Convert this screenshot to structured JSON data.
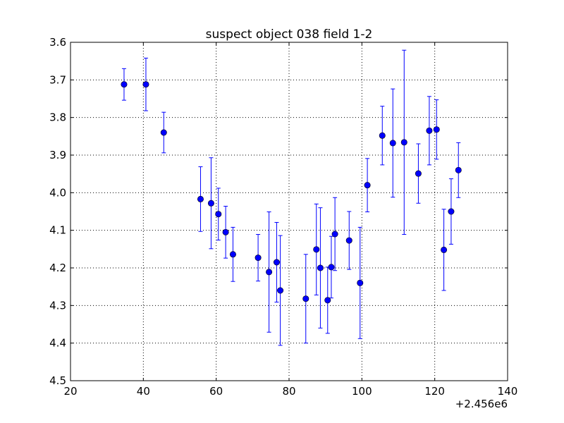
{
  "chart_data": {
    "type": "scatter",
    "title": "suspect object 038 field 1-2",
    "xlabel": "",
    "ylabel": "",
    "x_offset_label": "+2.456e6",
    "xlim": [
      20,
      140
    ],
    "ylim": [
      3.6,
      4.5
    ],
    "y_inverted": true,
    "grid": true,
    "x_ticks": [
      "20",
      "40",
      "60",
      "80",
      "100",
      "120",
      "140"
    ],
    "y_ticks": [
      "3.6",
      "3.7",
      "3.8",
      "3.9",
      "4.0",
      "4.1",
      "4.2",
      "4.3",
      "4.4",
      "4.5"
    ],
    "colors": {
      "series": "#0000ff",
      "grid": "#000000"
    },
    "series": [
      {
        "points": [
          {
            "x": 2456034.7,
            "y": 3.712,
            "err_low": 0.042,
            "err_high": 0.042
          },
          {
            "x": 2456040.7,
            "y": 3.712,
            "err_low": 0.07,
            "err_high": 0.07
          },
          {
            "x": 2456045.6,
            "y": 3.84,
            "err_low": 0.054,
            "err_high": 0.054
          },
          {
            "x": 2456055.7,
            "y": 4.017,
            "err_low": 0.086,
            "err_high": 0.086
          },
          {
            "x": 2456058.6,
            "y": 4.028,
            "err_low": 0.121,
            "err_high": 0.121
          },
          {
            "x": 2456060.6,
            "y": 4.057,
            "err_low": 0.069,
            "err_high": 0.069
          },
          {
            "x": 2456062.6,
            "y": 4.105,
            "err_low": 0.069,
            "err_high": 0.069
          },
          {
            "x": 2456064.6,
            "y": 4.164,
            "err_low": 0.072,
            "err_high": 0.072
          },
          {
            "x": 2456071.5,
            "y": 4.173,
            "err_low": 0.062,
            "err_high": 0.062
          },
          {
            "x": 2456074.5,
            "y": 4.211,
            "err_low": 0.16,
            "err_high": 0.16
          },
          {
            "x": 2456076.6,
            "y": 4.185,
            "err_low": 0.106,
            "err_high": 0.106
          },
          {
            "x": 2456077.6,
            "y": 4.26,
            "err_low": 0.146,
            "err_high": 0.146
          },
          {
            "x": 2456084.6,
            "y": 4.282,
            "err_low": 0.118,
            "err_high": 0.118
          },
          {
            "x": 2456087.5,
            "y": 4.151,
            "err_low": 0.121,
            "err_high": 0.121
          },
          {
            "x": 2456088.6,
            "y": 4.2,
            "err_low": 0.16,
            "err_high": 0.16
          },
          {
            "x": 2456090.6,
            "y": 4.286,
            "err_low": 0.088,
            "err_high": 0.088
          },
          {
            "x": 2456091.6,
            "y": 4.198,
            "err_low": 0.082,
            "err_high": 0.082
          },
          {
            "x": 2456092.6,
            "y": 4.11,
            "err_low": 0.097,
            "err_high": 0.097
          },
          {
            "x": 2456096.5,
            "y": 4.127,
            "err_low": 0.077,
            "err_high": 0.077
          },
          {
            "x": 2456099.5,
            "y": 4.24,
            "err_low": 0.148,
            "err_high": 0.148
          },
          {
            "x": 2456101.5,
            "y": 3.98,
            "err_low": 0.071,
            "err_high": 0.071
          },
          {
            "x": 2456105.6,
            "y": 3.848,
            "err_low": 0.078,
            "err_high": 0.078
          },
          {
            "x": 2456108.5,
            "y": 3.868,
            "err_low": 0.144,
            "err_high": 0.144
          },
          {
            "x": 2456111.6,
            "y": 3.866,
            "err_low": 0.245,
            "err_high": 0.245
          },
          {
            "x": 2456115.5,
            "y": 3.949,
            "err_low": 0.079,
            "err_high": 0.079
          },
          {
            "x": 2456118.5,
            "y": 3.835,
            "err_low": 0.091,
            "err_high": 0.091
          },
          {
            "x": 2456120.5,
            "y": 3.832,
            "err_low": 0.079,
            "err_high": 0.079
          },
          {
            "x": 2456122.5,
            "y": 4.152,
            "err_low": 0.108,
            "err_high": 0.108
          },
          {
            "x": 2456124.5,
            "y": 4.05,
            "err_low": 0.087,
            "err_high": 0.087
          },
          {
            "x": 2456126.5,
            "y": 3.94,
            "err_low": 0.073,
            "err_high": 0.073
          }
        ]
      }
    ]
  }
}
